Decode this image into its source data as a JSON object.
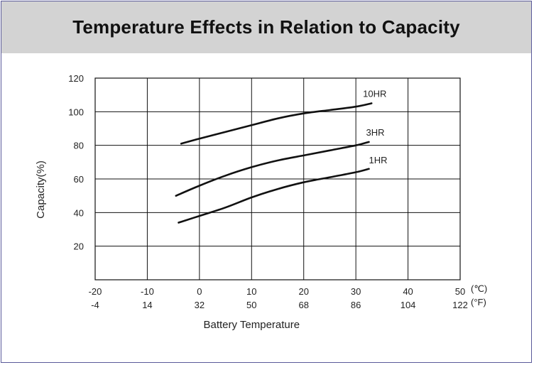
{
  "title": "Temperature Effects in Relation to Capacity",
  "chart_data": {
    "type": "line",
    "title": "Temperature Effects in Relation to Capacity",
    "xlabel": "Battery Temperature",
    "ylabel": "Capacity(%)",
    "xlim": [
      -20,
      50
    ],
    "ylim": [
      0,
      120
    ],
    "grid": true,
    "x_ticks": [
      {
        "c": "-20",
        "f": "-4"
      },
      {
        "c": "-10",
        "f": "14"
      },
      {
        "c": "0",
        "f": "32"
      },
      {
        "c": "10",
        "f": "50"
      },
      {
        "c": "20",
        "f": "68"
      },
      {
        "c": "30",
        "f": "86"
      },
      {
        "c": "40",
        "f": "104"
      },
      {
        "c": "50",
        "f": "122"
      }
    ],
    "x_unit_c": "(℃)",
    "x_unit_f": "(°F)",
    "y_ticks": [
      "20",
      "40",
      "60",
      "80",
      "100",
      "120"
    ],
    "series": [
      {
        "name": "10HR",
        "x": [
          -3.5,
          0,
          5,
          10,
          15,
          20,
          25,
          30,
          33
        ],
        "y": [
          81,
          84,
          88,
          92,
          96,
          99,
          101,
          103,
          105
        ]
      },
      {
        "name": "3HR",
        "x": [
          -4.5,
          0,
          5,
          10,
          15,
          20,
          25,
          30,
          32.5
        ],
        "y": [
          50,
          56,
          62,
          67,
          71,
          74,
          77,
          80,
          82
        ]
      },
      {
        "name": "1HR",
        "x": [
          -4,
          0,
          5,
          10,
          15,
          20,
          25,
          30,
          32.5
        ],
        "y": [
          34,
          38,
          43,
          49,
          54,
          58,
          61,
          64,
          66
        ]
      }
    ]
  }
}
